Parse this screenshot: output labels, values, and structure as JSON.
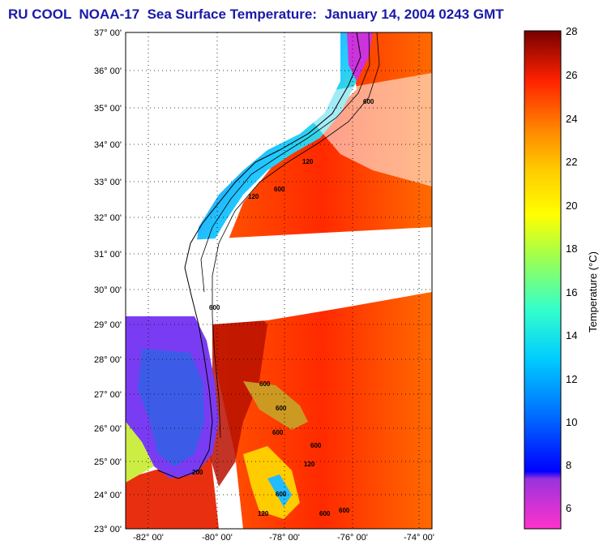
{
  "title": "RU COOL  NOAA-17  Sea Surface Temperature:  January 14, 2004 0243 GMT",
  "lat_labels": [
    "37° 00'",
    "36° 00'",
    "35° 00'",
    "34° 00'",
    "33° 00'",
    "32° 00'",
    "31° 00'",
    "30° 00'",
    "29° 00'",
    "28° 00'",
    "27° 00'",
    "26° 00'",
    "25° 00'",
    "24° 00'",
    "23° 00'"
  ],
  "lon_labels": [
    "-82° 00'",
    "-80° 00'",
    "-78° 00'",
    "-76° 00'",
    "-74° 00'"
  ],
  "colorbar": {
    "label": "Temperature (°C)",
    "ticks": [
      "28",
      "26",
      "24",
      "22",
      "20",
      "18",
      "16",
      "14",
      "12",
      "10",
      "8",
      "6"
    ]
  },
  "isobath_labels": [
    "600",
    "120",
    "600",
    "120",
    "600",
    "600",
    "600",
    "600",
    "120",
    "200",
    "600",
    "120",
    "600",
    "600",
    "600"
  ]
}
